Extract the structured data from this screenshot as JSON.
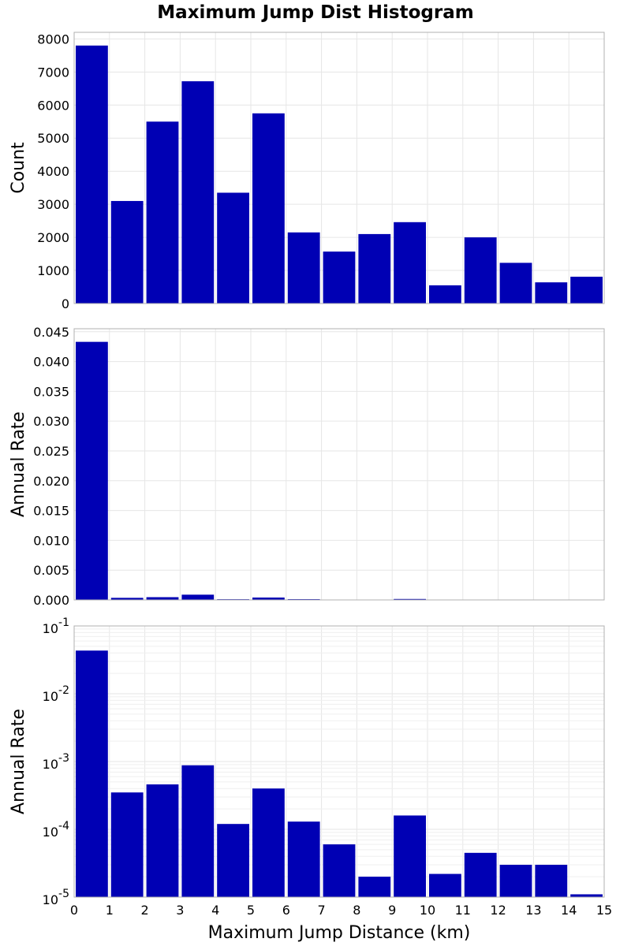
{
  "chart_data": {
    "title": "Maximum Jump Dist Histogram",
    "xlabel": "Maximum Jump Distance (km)",
    "x_ticks": [
      "0",
      "1",
      "2",
      "3",
      "4",
      "5",
      "6",
      "7",
      "8",
      "9",
      "10",
      "11",
      "12",
      "13",
      "14",
      "15"
    ],
    "bins": [
      [
        0,
        1
      ],
      [
        1,
        2
      ],
      [
        2,
        3
      ],
      [
        3,
        4
      ],
      [
        4,
        5
      ],
      [
        5,
        6
      ],
      [
        6,
        7
      ],
      [
        7,
        8
      ],
      [
        8,
        9
      ],
      [
        9,
        10
      ],
      [
        10,
        11
      ],
      [
        11,
        12
      ],
      [
        12,
        13
      ],
      [
        13,
        14
      ],
      [
        14,
        15
      ]
    ],
    "colors": {
      "bar": "#0000b4"
    },
    "panels": [
      {
        "type": "bar",
        "scale": "linear",
        "ylabel": "Count",
        "ylim": [
          0,
          8200
        ],
        "y_ticks": [
          0,
          1000,
          2000,
          3000,
          4000,
          5000,
          6000,
          7000,
          8000
        ],
        "y_tick_labels": [
          "0",
          "1000",
          "2000",
          "3000",
          "4000",
          "5000",
          "6000",
          "7000",
          "8000"
        ],
        "values": [
          7800,
          3100,
          5500,
          6720,
          3350,
          5750,
          2150,
          1570,
          2100,
          2460,
          550,
          2000,
          1230,
          640,
          810
        ]
      },
      {
        "type": "bar",
        "scale": "linear",
        "ylabel": "Annual Rate",
        "ylim": [
          0,
          0.0455
        ],
        "y_ticks": [
          0,
          0.005,
          0.01,
          0.015,
          0.02,
          0.025,
          0.03,
          0.035,
          0.04,
          0.045
        ],
        "y_tick_labels": [
          "0.000",
          "0.005",
          "0.010",
          "0.015",
          "0.020",
          "0.025",
          "0.030",
          "0.035",
          "0.040",
          "0.045"
        ],
        "values": [
          0.0433,
          0.00035,
          0.00046,
          0.00088,
          0.00012,
          0.0004,
          0.00013,
          6e-05,
          2e-05,
          0.00016,
          2.2e-05,
          4.5e-05,
          3e-05,
          3e-05,
          1.1e-05
        ]
      },
      {
        "type": "bar",
        "scale": "log",
        "ylabel": "Annual Rate",
        "ylim": [
          1e-05,
          0.1
        ],
        "y_ticks": [
          1e-05,
          0.0001,
          0.001,
          0.01,
          0.1
        ],
        "y_tick_bases": [
          "10",
          "10",
          "10",
          "10",
          "10"
        ],
        "y_tick_exponents": [
          "-5",
          "-4",
          "-3",
          "-2",
          "-1"
        ],
        "values": [
          0.0433,
          0.00035,
          0.00046,
          0.00088,
          0.00012,
          0.0004,
          0.00013,
          6e-05,
          2e-05,
          0.00016,
          2.2e-05,
          4.5e-05,
          3e-05,
          3e-05,
          1.1e-05
        ]
      }
    ]
  }
}
